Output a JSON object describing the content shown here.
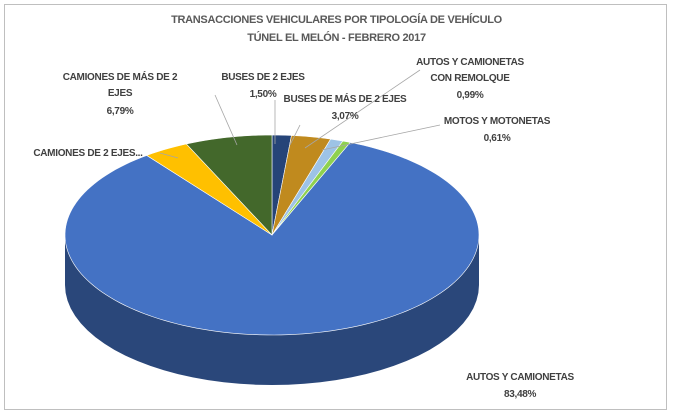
{
  "chart_data": {
    "type": "pie3d",
    "title": "TRANSACCIONES VEHICULARES POR TIPOLOGÍA DE VEHÍCULO",
    "subtitle": "TÚNEL EL MELÓN - FEBRERO 2017",
    "categories": [
      "BUSES DE 2 EJES",
      "BUSES DE MÁS DE 2 EJES",
      "AUTOS Y CAMIONETAS CON REMOLQUE",
      "MOTOS Y MOTONETAS",
      "AUTOS Y CAMIONETAS",
      "CAMIONES DE 2 EJES...",
      "CAMIONES DE MÁS DE 2 EJES"
    ],
    "values": [
      1.5,
      3.07,
      0.99,
      0.61,
      83.48,
      3.56,
      6.79
    ],
    "value_labels": [
      "1,50%",
      "3,07%",
      "0,99%",
      "0,61%",
      "83,48%",
      null,
      "6,79%"
    ],
    "colors": [
      "#264478",
      "#c08a1e",
      "#9dc3e6",
      "#8fd14f",
      "#4472c4",
      "#ffc000",
      "#43682b"
    ]
  }
}
